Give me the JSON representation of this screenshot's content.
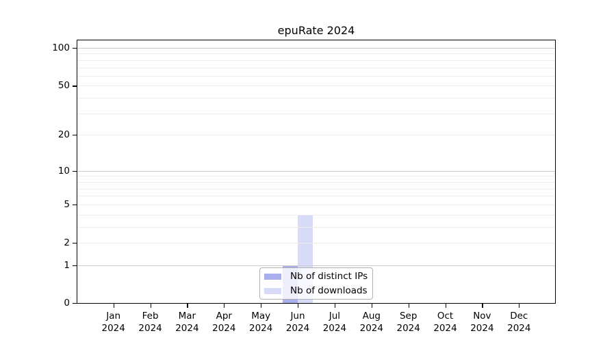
{
  "title": "epuRate 2024",
  "chart_data": {
    "type": "bar",
    "title": "epuRate 2024",
    "categories": [
      "Jan 2024",
      "Feb 2024",
      "Mar 2024",
      "Apr 2024",
      "May 2024",
      "Jun 2024",
      "Jul 2024",
      "Aug 2024",
      "Sep 2024",
      "Oct 2024",
      "Nov 2024",
      "Dec 2024"
    ],
    "x": {
      "months": [
        "Jan",
        "Feb",
        "Mar",
        "Apr",
        "May",
        "Jun",
        "Jul",
        "Aug",
        "Sep",
        "Oct",
        "Nov",
        "Dec"
      ],
      "year": "2024"
    },
    "series": [
      {
        "name": "Nb of distinct IPs",
        "color": "#a9aeec",
        "values": [
          0,
          0,
          0,
          0,
          0,
          1,
          0,
          0,
          0,
          0,
          0,
          0
        ]
      },
      {
        "name": "Nb of downloads",
        "color": "#d8dbf8",
        "values": [
          0,
          0,
          0,
          0,
          0,
          4,
          0,
          0,
          0,
          0,
          0,
          0
        ]
      }
    ],
    "y_axis": {
      "scale": "symlog",
      "range": [
        0,
        100
      ],
      "tick_values": [
        0,
        1,
        2,
        5,
        10,
        20,
        50,
        100
      ],
      "tick_labels": [
        "0",
        "1",
        "2",
        "5",
        "10",
        "20",
        "50",
        "100"
      ],
      "major_gridlines": [
        1,
        10,
        100
      ],
      "minor_gridlines": [
        2,
        3,
        4,
        5,
        6,
        7,
        8,
        9,
        20,
        30,
        40,
        50,
        60,
        70,
        80,
        90
      ]
    },
    "grid": true,
    "legend_position": "lower center",
    "xlabel": "",
    "ylabel": ""
  },
  "legend": {
    "items": [
      {
        "label": "Nb of distinct IPs",
        "color": "#a9aeec"
      },
      {
        "label": "Nb of downloads",
        "color": "#d8dbf8"
      }
    ]
  },
  "colors": {
    "background": "#ffffff",
    "spine": "#000000",
    "text": "#000000",
    "grid_major": "#c9c9c9",
    "grid_minor": "#ececec",
    "legend_border": "#b0b0b0"
  }
}
